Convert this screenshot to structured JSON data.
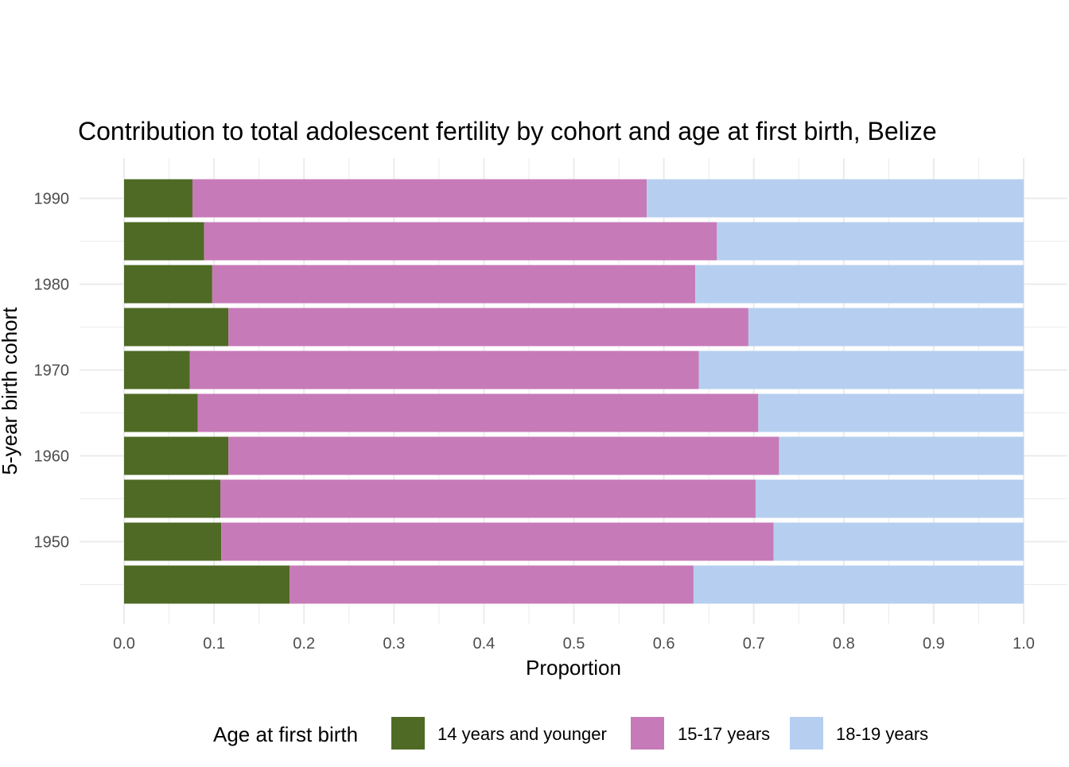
{
  "chart_data": {
    "type": "bar",
    "orientation": "horizontal",
    "stacked": true,
    "title": "Contribution to total adolescent fertility by cohort and age at first birth,  Belize",
    "xlabel": "Proportion",
    "ylabel": "5-year birth cohort",
    "xlim": [
      0,
      1
    ],
    "x_ticks": [
      "0.0",
      "0.1",
      "0.2",
      "0.3",
      "0.4",
      "0.5",
      "0.6",
      "0.7",
      "0.8",
      "0.9",
      "1.0"
    ],
    "y_tick_labels": [
      "1950",
      "1960",
      "1970",
      "1980",
      "1990"
    ],
    "y_tick_cohorts": [
      1950,
      1960,
      1970,
      1980,
      1990
    ],
    "cohorts": [
      1945,
      1950,
      1955,
      1960,
      1965,
      1970,
      1975,
      1980,
      1985,
      1990
    ],
    "series": [
      {
        "name": "14 years and younger",
        "color": "#4e6a24",
        "values": [
          0.184,
          0.108,
          0.107,
          0.116,
          0.082,
          0.073,
          0.116,
          0.098,
          0.089,
          0.076
        ]
      },
      {
        "name": "15-17 years",
        "color": "#c77ab8",
        "values": [
          0.449,
          0.614,
          0.595,
          0.612,
          0.623,
          0.566,
          0.578,
          0.537,
          0.57,
          0.505
        ]
      },
      {
        "name": "18-19 years",
        "color": "#b6cff0",
        "values": [
          0.367,
          0.278,
          0.298,
          0.272,
          0.295,
          0.361,
          0.306,
          0.365,
          0.341,
          0.419
        ]
      }
    ],
    "grid": true,
    "legend": {
      "title": "Age at first birth",
      "position": "bottom"
    }
  }
}
